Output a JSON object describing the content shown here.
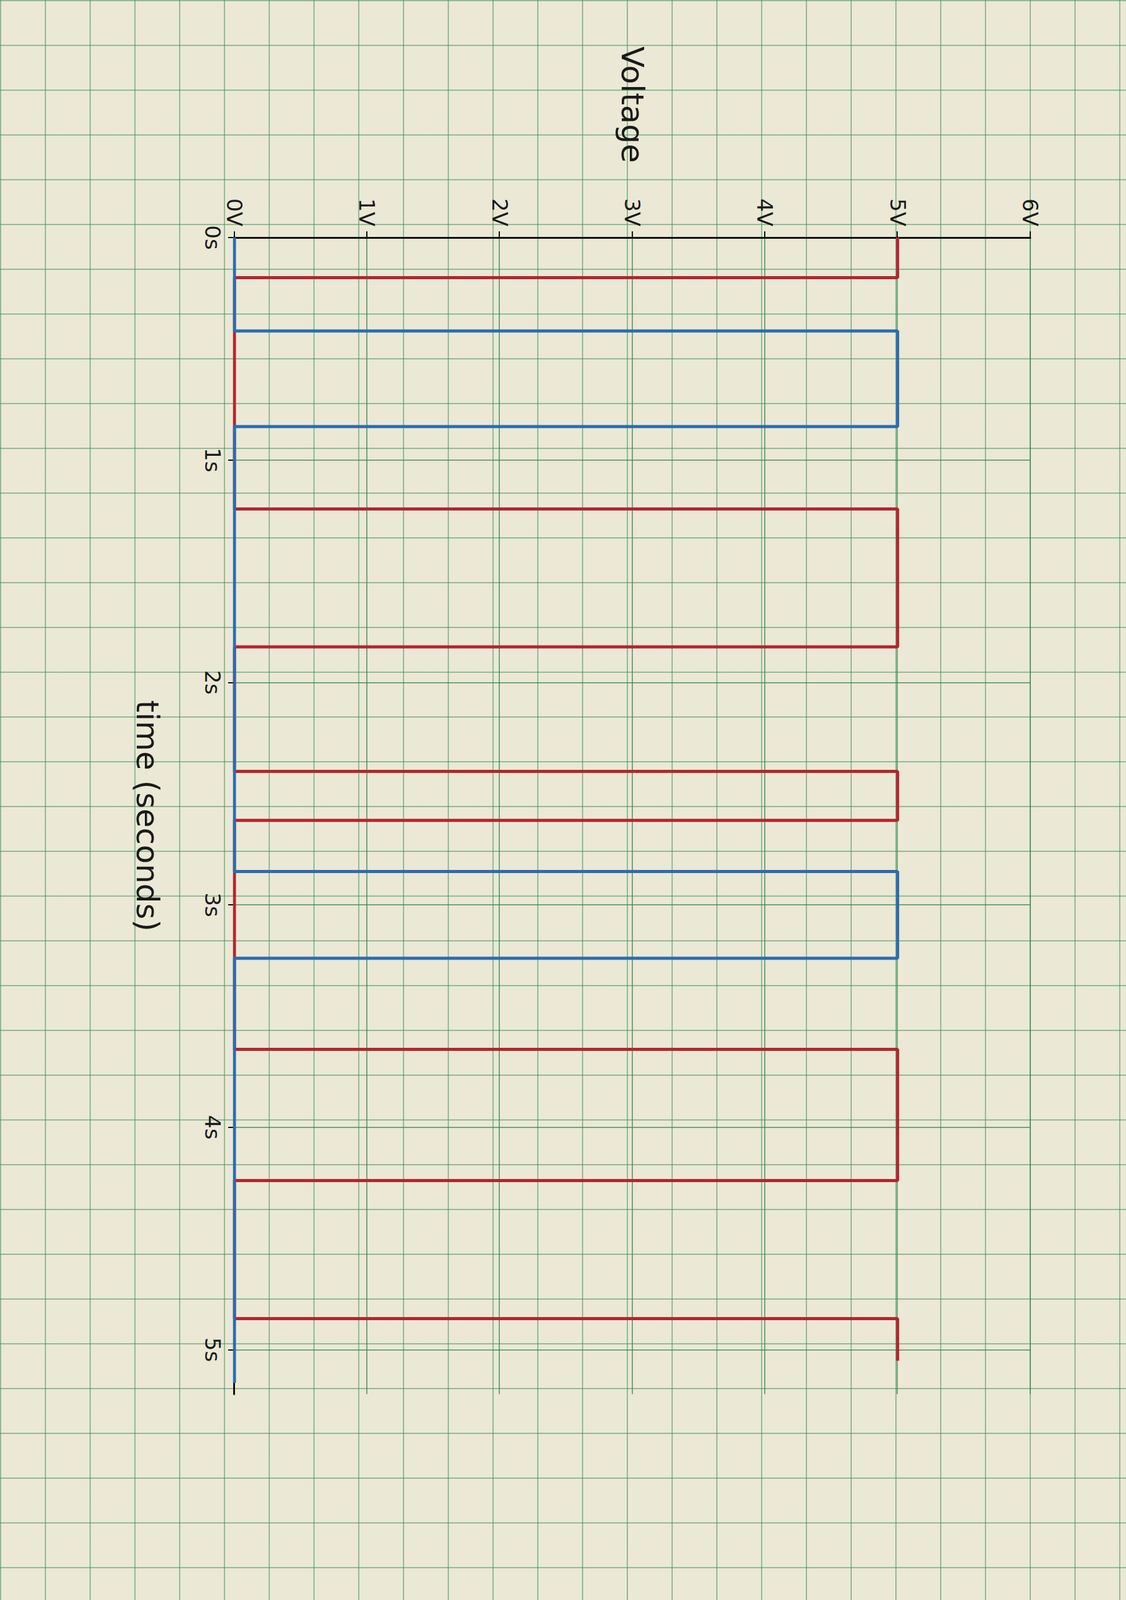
{
  "chart_data": {
    "type": "line",
    "x_label": "time (seconds)",
    "y_label": "Voltage",
    "xlim": [
      0,
      5.2
    ],
    "xticks": [
      {
        "value": 0,
        "label": "0s"
      },
      {
        "value": 1,
        "label": "1s"
      },
      {
        "value": 2,
        "label": "2s"
      },
      {
        "value": 3,
        "label": "3s"
      },
      {
        "value": 4,
        "label": "4s"
      },
      {
        "value": 5,
        "label": "5s"
      }
    ],
    "ylim": [
      0,
      6
    ],
    "yticks": [
      {
        "value": 0,
        "label": "0V"
      },
      {
        "value": 1,
        "label": "1V"
      },
      {
        "value": 2,
        "label": "2V"
      },
      {
        "value": 3,
        "label": "3V"
      },
      {
        "value": 4,
        "label": "4V"
      },
      {
        "value": 5,
        "label": "5V"
      },
      {
        "value": 6,
        "label": "6V"
      }
    ],
    "grid": true,
    "series": [
      {
        "color": "#b3262e",
        "x": [
          0,
          0.18,
          0.18,
          1.22,
          1.22,
          1.84,
          1.84,
          2.4,
          2.4,
          2.62,
          2.62,
          3.65,
          3.65,
          4.24,
          4.24,
          4.86,
          4.86,
          5.05
        ],
        "values": [
          5,
          5,
          0,
          0,
          5,
          5,
          0,
          0,
          5,
          5,
          0,
          0,
          5,
          5,
          0,
          0,
          5,
          5
        ]
      },
      {
        "color": "#2b6cb0",
        "x": [
          0,
          0.42,
          0.42,
          0.85,
          0.85,
          2.85,
          2.85,
          3.24,
          3.24,
          5.15
        ],
        "values": [
          0,
          0,
          5,
          5,
          0,
          0,
          5,
          5,
          0,
          0
        ]
      }
    ]
  }
}
